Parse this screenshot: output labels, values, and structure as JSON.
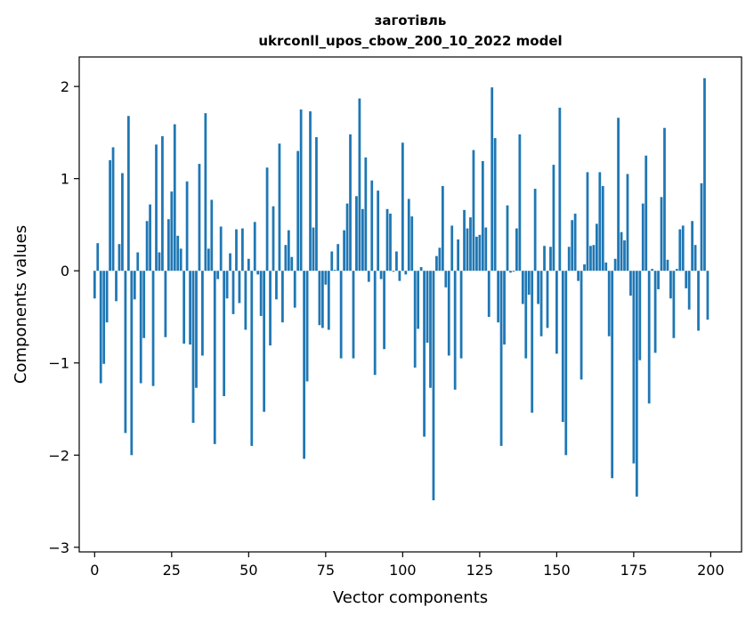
{
  "chart_data": {
    "type": "bar",
    "title_lines": [
      "заготівль",
      "ukrconll_upos_cbow_200_10_2022 model"
    ],
    "xlabel": "Vector components",
    "ylabel": "Components values",
    "xlim": [
      -5,
      210
    ],
    "ylim": [
      -3.05,
      2.32
    ],
    "xticks": [
      0,
      25,
      50,
      75,
      100,
      125,
      150,
      175,
      200
    ],
    "xtick_labels": [
      "0",
      "25",
      "50",
      "75",
      "100",
      "125",
      "150",
      "175",
      "200"
    ],
    "yticks": [
      -3,
      -2,
      -1,
      0,
      1,
      2
    ],
    "ytick_labels": [
      "−3",
      "−2",
      "−1",
      "0",
      "1",
      "2"
    ],
    "grid": false,
    "bar_color": "#1f77b4",
    "x": [
      0,
      1,
      2,
      3,
      4,
      5,
      6,
      7,
      8,
      9,
      10,
      11,
      12,
      13,
      14,
      15,
      16,
      17,
      18,
      19,
      20,
      21,
      22,
      23,
      24,
      25,
      26,
      27,
      28,
      29,
      30,
      31,
      32,
      33,
      34,
      35,
      36,
      37,
      38,
      39,
      40,
      41,
      42,
      43,
      44,
      45,
      46,
      47,
      48,
      49,
      50,
      51,
      52,
      53,
      54,
      55,
      56,
      57,
      58,
      59,
      60,
      61,
      62,
      63,
      64,
      65,
      66,
      67,
      68,
      69,
      70,
      71,
      72,
      73,
      74,
      75,
      76,
      77,
      78,
      79,
      80,
      81,
      82,
      83,
      84,
      85,
      86,
      87,
      88,
      89,
      90,
      91,
      92,
      93,
      94,
      95,
      96,
      97,
      98,
      99,
      100,
      101,
      102,
      103,
      104,
      105,
      106,
      107,
      108,
      109,
      110,
      111,
      112,
      113,
      114,
      115,
      116,
      117,
      118,
      119,
      120,
      121,
      122,
      123,
      124,
      125,
      126,
      127,
      128,
      129,
      130,
      131,
      132,
      133,
      134,
      135,
      136,
      137,
      138,
      139,
      140,
      141,
      142,
      143,
      144,
      145,
      146,
      147,
      148,
      149,
      150,
      151,
      152,
      153,
      154,
      155,
      156,
      157,
      158,
      159,
      160,
      161,
      162,
      163,
      164,
      165,
      166,
      167,
      168,
      169,
      170,
      171,
      172,
      173,
      174,
      175,
      176,
      177,
      178,
      179,
      180,
      181,
      182,
      183,
      184,
      185,
      186,
      187,
      188,
      189,
      190,
      191,
      192,
      193,
      194,
      195,
      196,
      197,
      198,
      199
    ],
    "values": [
      -0.3,
      0.3,
      -1.22,
      -1.01,
      -0.56,
      1.2,
      1.34,
      -0.33,
      0.29,
      1.06,
      -1.76,
      1.68,
      -2.0,
      -0.31,
      0.2,
      -1.22,
      -0.73,
      0.54,
      0.72,
      -1.25,
      1.37,
      0.2,
      1.46,
      -0.72,
      0.56,
      0.86,
      1.59,
      0.38,
      0.24,
      -0.79,
      0.97,
      -0.8,
      -1.65,
      -1.27,
      1.16,
      -0.92,
      1.71,
      0.24,
      0.77,
      -1.88,
      -0.09,
      0.48,
      -1.36,
      -0.3,
      0.19,
      -0.47,
      0.45,
      -0.35,
      0.46,
      -0.64,
      0.13,
      -1.9,
      0.53,
      -0.04,
      -0.49,
      -1.53,
      1.12,
      -0.81,
      0.7,
      -0.31,
      1.38,
      -0.56,
      0.28,
      0.44,
      0.15,
      -0.4,
      1.3,
      1.75,
      -2.04,
      -1.2,
      1.73,
      0.47,
      1.45,
      -0.59,
      -0.62,
      -0.15,
      -0.64,
      0.21,
      0.01,
      0.29,
      -0.95,
      0.44,
      0.73,
      1.48,
      -0.95,
      0.81,
      1.87,
      0.67,
      1.23,
      -0.12,
      0.98,
      -1.13,
      0.87,
      -0.09,
      -0.85,
      0.67,
      0.62,
      -0.01,
      0.21,
      -0.11,
      1.39,
      -0.04,
      0.78,
      0.59,
      -1.05,
      -0.63,
      0.04,
      -1.8,
      -0.78,
      -1.27,
      -2.49,
      0.16,
      0.25,
      0.92,
      -0.18,
      -0.92,
      0.49,
      -1.29,
      0.34,
      -0.95,
      0.66,
      0.46,
      0.58,
      1.31,
      0.37,
      0.39,
      1.19,
      0.47,
      -0.5,
      1.99,
      1.44,
      -0.56,
      -1.9,
      -0.8,
      0.71,
      -0.02,
      -0.01,
      0.46,
      1.48,
      -0.36,
      -0.95,
      -0.26,
      -1.54,
      0.89,
      -0.36,
      -0.71,
      0.27,
      -0.62,
      0.26,
      1.15,
      -0.9,
      1.77,
      -1.64,
      -2.0,
      0.26,
      0.55,
      0.62,
      -0.11,
      -1.18,
      0.07,
      1.07,
      0.27,
      0.28,
      0.51,
      1.07,
      0.92,
      0.09,
      -0.71,
      -2.25,
      0.13,
      1.66,
      0.42,
      0.33,
      1.05,
      -0.27,
      -2.09,
      -2.45,
      -0.97,
      0.73,
      1.25,
      -1.44,
      0.02,
      -0.89,
      -0.2,
      0.8,
      1.55,
      0.12,
      -0.3,
      -0.73,
      0.02,
      0.45,
      0.49,
      -0.19,
      -0.42,
      0.54,
      0.28,
      -0.65,
      0.95,
      2.09,
      -0.53
    ]
  }
}
